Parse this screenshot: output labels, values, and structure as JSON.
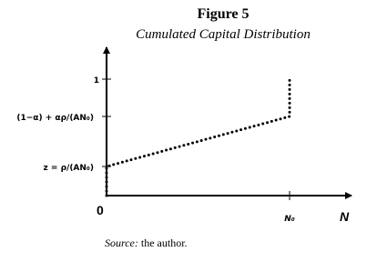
{
  "figure": {
    "title": "Figure 5",
    "subtitle": "Cumulated Capital Distribution",
    "y_labels": [
      "1",
      "(1−α) + αρ/(AN₀)",
      "z = ρ/(AN₀)"
    ],
    "origin": "0",
    "x_tick": "N₀",
    "x_axis": "N"
  },
  "source": {
    "label": "Source:",
    "text": "the author."
  }
}
